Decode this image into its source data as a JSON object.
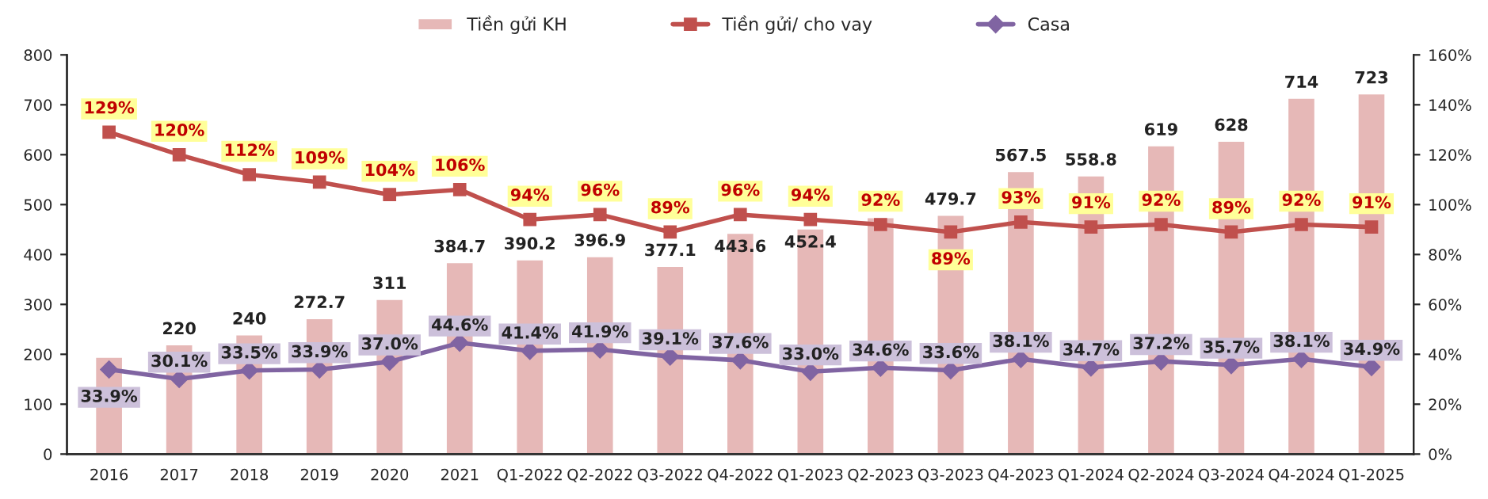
{
  "chart_data": {
    "type": "bar",
    "categories": [
      "2016",
      "2017",
      "2018",
      "2019",
      "2020",
      "2021",
      "Q1-2022",
      "Q2-2022",
      "Q3-2022",
      "Q4-2022",
      "Q1-2023",
      "Q2-2023",
      "Q3-2023",
      "Q4-2023",
      "Q1-2024",
      "Q2-2024",
      "Q3-2024",
      "Q4-2024",
      "Q1-2025"
    ],
    "series": [
      {
        "name": "Tiền gửi KH",
        "color": "#e6b8b7",
        "values": [
          195,
          220,
          240,
          272.7,
          311,
          384.7,
          390.2,
          396.9,
          377.1,
          443.6,
          452.4,
          475,
          479.7,
          567.5,
          558.8,
          619,
          628,
          714,
          723
        ],
        "value_labels": [
          null,
          "220",
          "240",
          "272.7",
          "311",
          "384.7",
          "390.2",
          "396.9",
          "377.1",
          "443.6",
          "452.4",
          null,
          "479.7",
          "567.5",
          "558.8",
          "619",
          "628",
          "714",
          "723"
        ]
      },
      {
        "name": "Tiền gửi/ cho vay",
        "type": "line",
        "axis": "y2",
        "marker": "square",
        "color": "#c0504d",
        "values": [
          129,
          120,
          112,
          109,
          104,
          106,
          94,
          96,
          89,
          96,
          94,
          92,
          89,
          93,
          91,
          92,
          89,
          92,
          91
        ],
        "value_labels": [
          "129%",
          "120%",
          "112%",
          "109%",
          "104%",
          "106%",
          "94%",
          "96%",
          "89%",
          "96%",
          "94%",
          "92%",
          "89%",
          "93%",
          "91%",
          "92%",
          "89%",
          "92%",
          "91%"
        ]
      },
      {
        "name": "Casa",
        "type": "line",
        "axis": "y2",
        "marker": "diamond",
        "color": "#8064a2",
        "values": [
          33.9,
          30.1,
          33.5,
          33.9,
          37.0,
          44.6,
          41.4,
          41.9,
          39.1,
          37.6,
          33.0,
          34.6,
          33.6,
          38.1,
          34.7,
          37.2,
          35.7,
          38.1,
          34.9
        ],
        "value_labels": [
          "33.9%",
          "30.1%",
          "33.5%",
          "33.9%",
          "37.0%",
          "44.6%",
          "41.4%",
          "41.9%",
          "39.1%",
          "37.6%",
          "33.0%",
          "34.6%",
          "33.6%",
          "38.1%",
          "34.7%",
          "37.2%",
          "35.7%",
          "38.1%",
          "34.9%"
        ]
      }
    ],
    "ylim": [
      0,
      800
    ],
    "yticks": [
      0,
      100,
      200,
      300,
      400,
      500,
      600,
      700,
      800
    ],
    "y2lim": [
      0,
      160
    ],
    "y2ticks": [
      {
        "value": 0,
        "label": "0%"
      },
      {
        "value": 20,
        "label": "20%"
      },
      {
        "value": 40,
        "label": "40%"
      },
      {
        "value": 60,
        "label": "60%"
      },
      {
        "value": 80,
        "label": "80%"
      },
      {
        "value": 100,
        "label": "100%"
      },
      {
        "value": 120,
        "label": "120%"
      },
      {
        "value": 140,
        "label": "140%"
      },
      {
        "value": 160,
        "label": "160%"
      }
    ],
    "legend": "top",
    "grid": false
  }
}
